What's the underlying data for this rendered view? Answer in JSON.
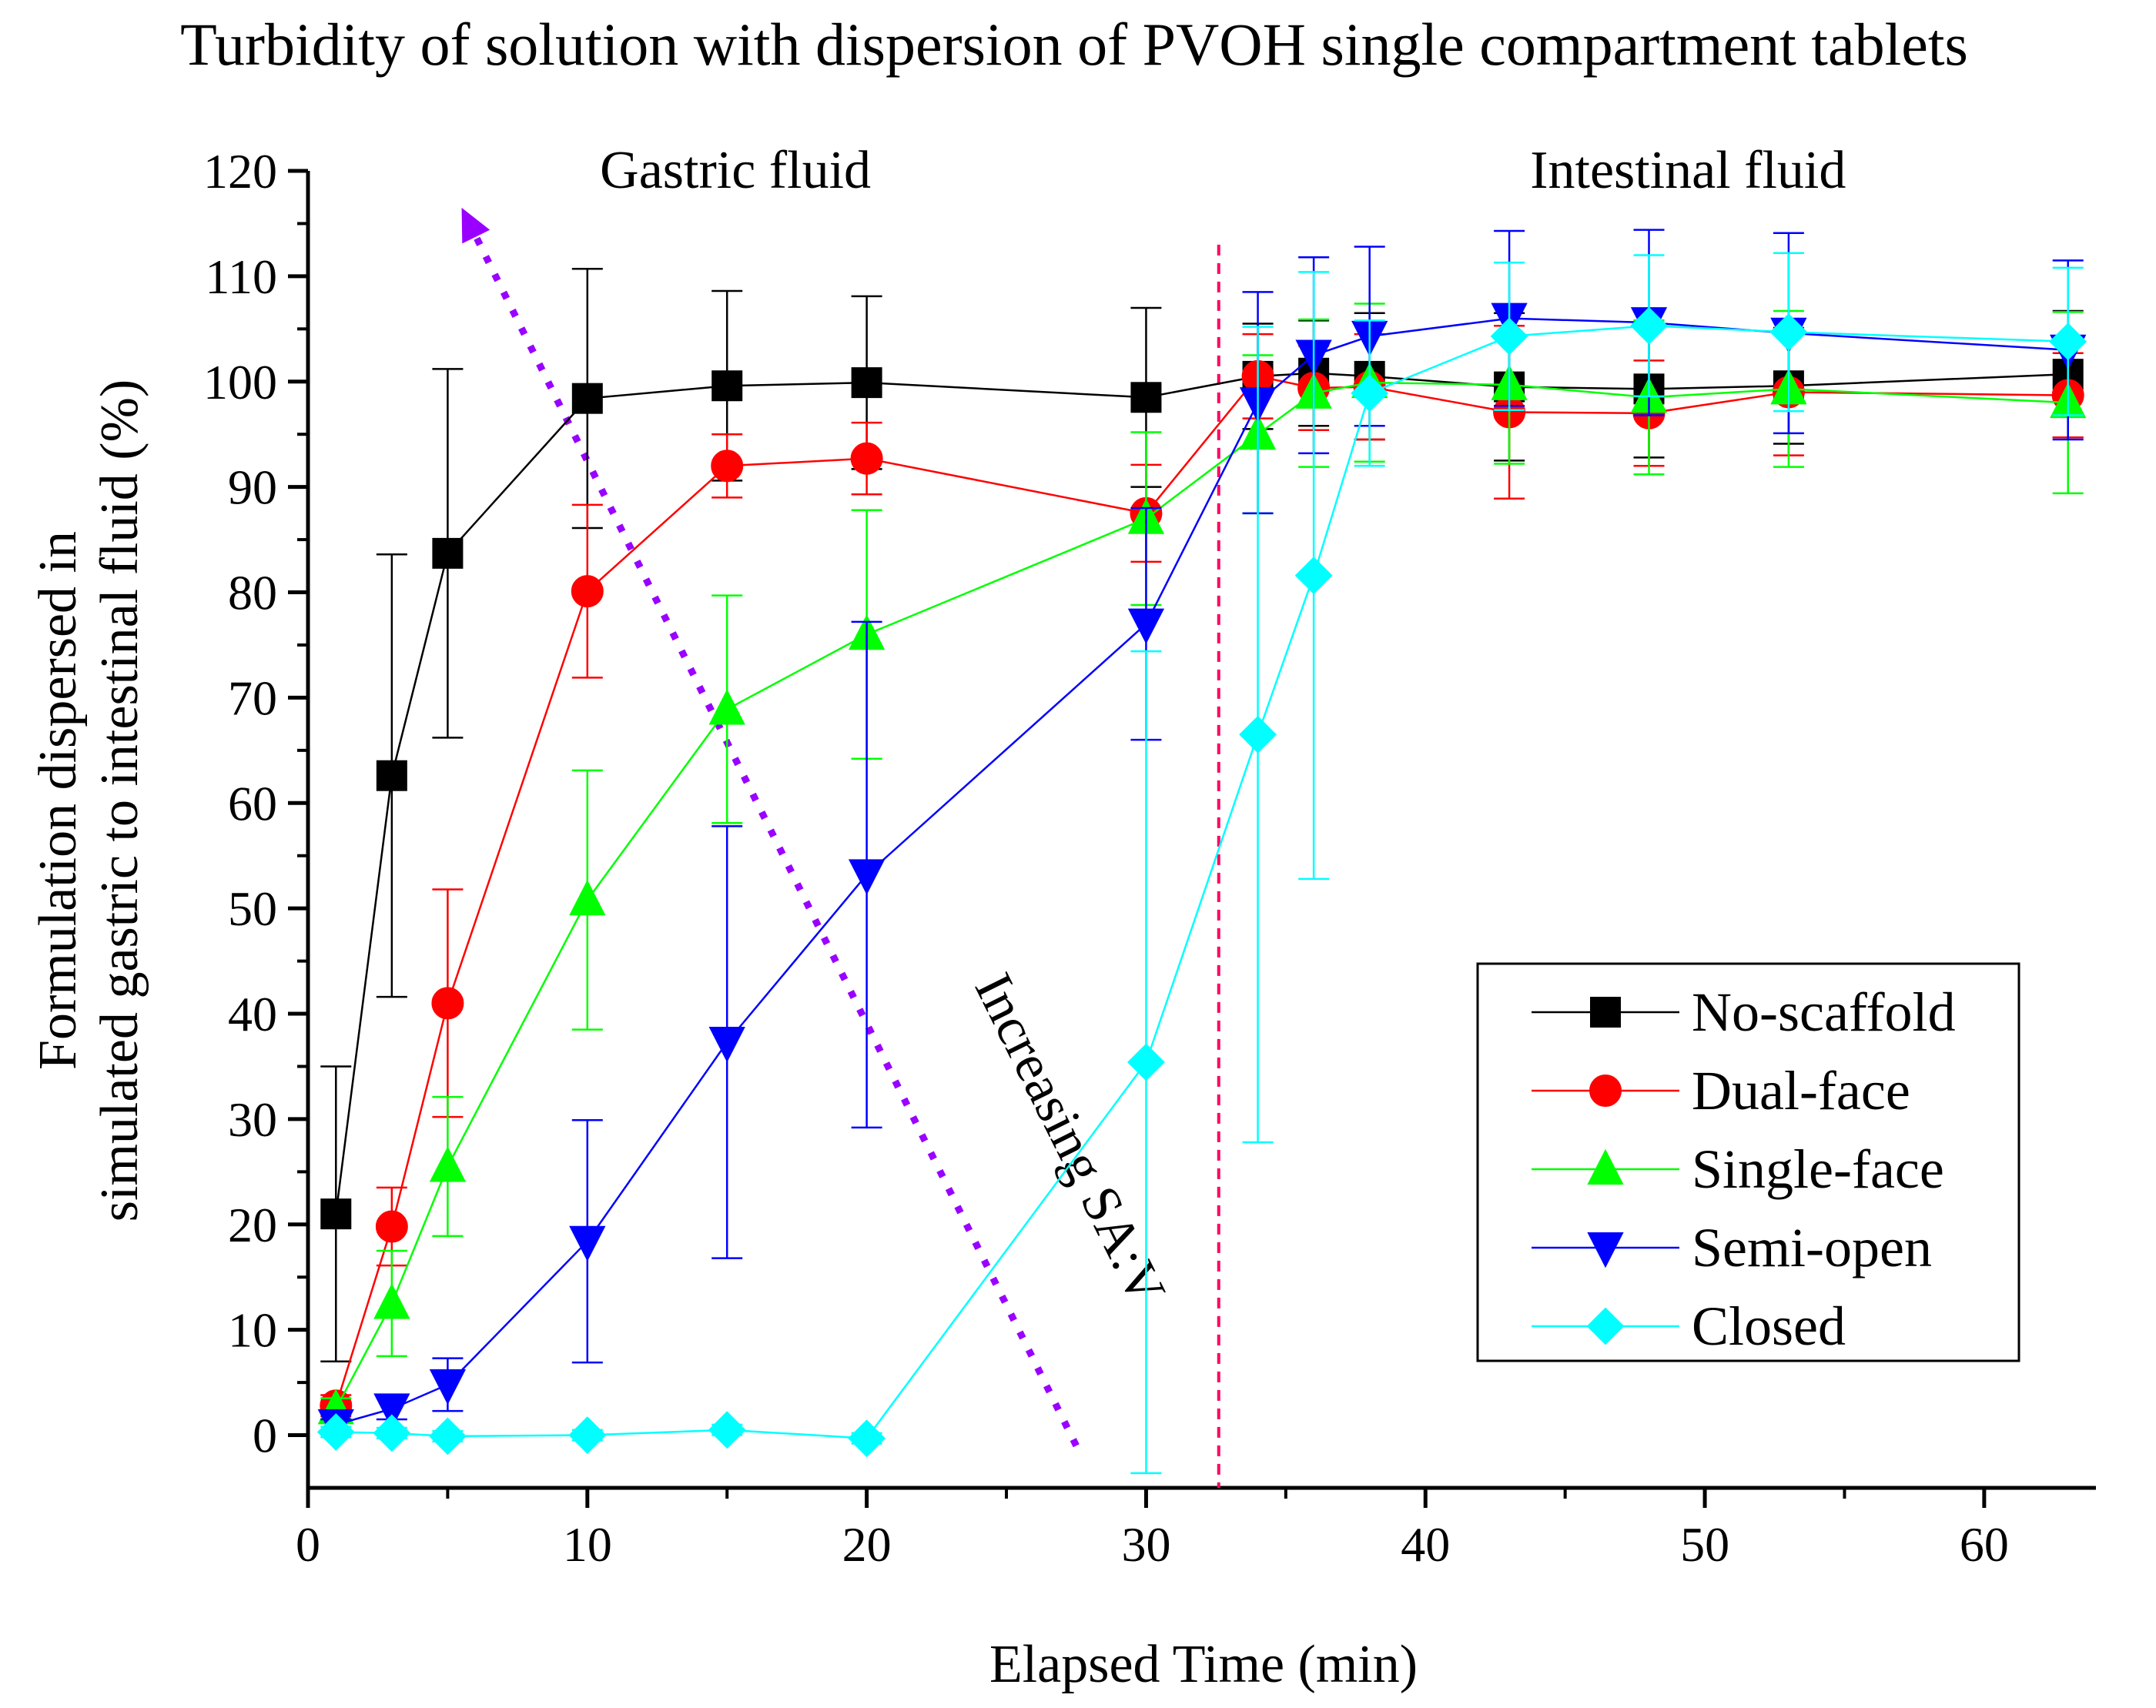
{
  "chart_data": {
    "type": "line",
    "title": "Turbidity of solution with dispersion of PVOH single compartment tablets",
    "xlabel": "Elapsed Time (min)",
    "ylabel_lines": [
      "Formulation dispersed in",
      "simulated gastric to intestinal fluid (%)"
    ],
    "xlim": [
      0,
      64
    ],
    "ylim": [
      -5,
      120
    ],
    "xticks": [
      0,
      10,
      20,
      30,
      40,
      50,
      60
    ],
    "yticks": [
      0,
      10,
      20,
      30,
      40,
      50,
      60,
      70,
      80,
      90,
      100,
      110,
      120
    ],
    "region_labels": [
      {
        "text": "Gastric fluid",
        "x": 15.3,
        "y": 120
      },
      {
        "text": "Intestinal fluid",
        "x": 49.4,
        "y": 120
      }
    ],
    "divider_x": 32.6,
    "annotation": {
      "text": "Increasing SA:V",
      "from": [
        27.5,
        -1
      ],
      "to": [
        5.5,
        116.5
      ]
    },
    "legend_position": "lower-right",
    "series": [
      {
        "name": "No-scaffold",
        "color": "#000000",
        "marker": "square",
        "x": [
          1,
          3,
          5,
          10,
          15,
          20,
          30,
          34,
          36,
          38,
          43,
          48,
          53,
          63
        ],
        "y": [
          21,
          62.6,
          83.7,
          98.4,
          99.6,
          99.9,
          98.5,
          100.5,
          100.8,
          100.5,
          99.5,
          99.3,
          99.6,
          100.7
        ],
        "err": [
          14,
          21,
          17.5,
          12.3,
          9,
          8.2,
          8.5,
          5,
          5,
          6,
          7,
          6.5,
          5.5,
          6
        ]
      },
      {
        "name": "Dual-face",
        "color": "#ff0000",
        "marker": "circle",
        "x": [
          1,
          3,
          5,
          10,
          15,
          20,
          30,
          34,
          36,
          38,
          43,
          48,
          53,
          63
        ],
        "y": [
          2.8,
          19.8,
          41,
          80.1,
          92,
          92.7,
          87.5,
          100.5,
          99.4,
          99.5,
          97.1,
          97,
          99,
          98.7
        ],
        "err": [
          1,
          3.7,
          10.8,
          8.2,
          3,
          3.4,
          4.6,
          4,
          4,
          5,
          8.2,
          5,
          6,
          4
        ]
      },
      {
        "name": "Single-face",
        "color": "#00ff00",
        "marker": "triangle-up",
        "x": [
          1,
          3,
          5,
          10,
          15,
          20,
          30,
          34,
          36,
          38,
          43,
          48,
          53,
          63
        ],
        "y": [
          2.5,
          12.5,
          25.5,
          50.8,
          68.9,
          76,
          87,
          95,
          98.9,
          99.9,
          99.7,
          98.5,
          99.3,
          98
        ],
        "err": [
          1,
          5,
          6.6,
          12.3,
          10.8,
          11.8,
          8.2,
          7.5,
          7,
          7.5,
          7.5,
          7.3,
          7.4,
          8.6
        ]
      },
      {
        "name": "Semi-open",
        "color": "#0000ff",
        "marker": "triangle-down",
        "x": [
          1,
          3,
          5,
          10,
          15,
          20,
          30,
          34,
          36,
          38,
          43,
          48,
          53,
          63
        ],
        "y": [
          1,
          2.5,
          4.8,
          18.4,
          37.3,
          53.2,
          77,
          98,
          102.5,
          104.3,
          106,
          105.6,
          104.6,
          103
        ],
        "err": [
          0.5,
          1,
          2.5,
          11.5,
          20.5,
          24,
          11,
          10.5,
          9.3,
          8.5,
          8.3,
          8.8,
          9.5,
          8.5
        ]
      },
      {
        "name": "Closed",
        "color": "#00ffff",
        "marker": "diamond",
        "x": [
          1,
          3,
          5,
          10,
          15,
          20,
          30,
          34,
          36,
          38,
          43,
          48,
          53,
          63
        ],
        "y": [
          0.3,
          0.2,
          -0.1,
          0,
          0.5,
          -0.3,
          35.4,
          66.5,
          81.6,
          98.9,
          104.3,
          105.3,
          104.7,
          103.8
        ],
        "err": [
          0.5,
          0.5,
          0.5,
          0.5,
          0.5,
          0.5,
          39,
          38.7,
          28.8,
          6.9,
          7,
          6.7,
          7.5,
          7
        ]
      }
    ]
  }
}
